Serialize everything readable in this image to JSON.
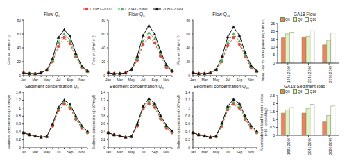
{
  "chart_data": [
    {
      "type": "line",
      "title": "Flow Q₀",
      "ylabel": "Flow (× 10³ m³ s⁻¹)",
      "categories": [
        "Jan",
        null,
        "Mar",
        null,
        "May",
        null,
        "Jul",
        null,
        "Sep",
        null,
        "Nov",
        null
      ],
      "ylim": [
        0,
        80
      ],
      "yticks": [
        0,
        20,
        40,
        60,
        80
      ],
      "series": [
        {
          "name": "1981-2000",
          "color": "#e8413c",
          "marker": "circle",
          "line_style": "dashed",
          "values": [
            4,
            3,
            3,
            4,
            8,
            20,
            42,
            55,
            46,
            27,
            12,
            6
          ]
        },
        {
          "name": "2041-2060",
          "color": "#4caf50",
          "marker": "triangle",
          "line_style": "dashed",
          "values": [
            4,
            3,
            3,
            4,
            8,
            22,
            48,
            60,
            51,
            29,
            13,
            6
          ]
        },
        {
          "name": "2080-2099",
          "color": "#111111",
          "marker": "triangle",
          "line_style": "solid",
          "values": [
            4,
            3,
            3,
            4,
            8,
            25,
            55,
            66,
            57,
            32,
            14,
            7
          ]
        }
      ]
    },
    {
      "type": "line",
      "title": "Flow Q₈",
      "ylabel": "Flow (× 10³ m³ s⁻¹)",
      "categories": [
        "Jan",
        null,
        "Mar",
        null,
        "May",
        null,
        "Jul",
        null,
        "Sep",
        null,
        "Nov",
        null
      ],
      "ylim": [
        0,
        80
      ],
      "yticks": [
        0,
        20,
        40,
        60,
        80
      ],
      "series": [
        {
          "name": "1981-2000",
          "color": "#e8413c",
          "marker": "circle",
          "line_style": "dashed",
          "values": [
            4,
            3,
            3,
            4,
            8,
            22,
            45,
            55,
            47,
            28,
            12,
            6
          ]
        },
        {
          "name": "2041-2060",
          "color": "#4caf50",
          "marker": "triangle",
          "line_style": "dashed",
          "values": [
            4,
            3,
            3,
            4,
            9,
            25,
            50,
            62,
            53,
            31,
            14,
            7
          ]
        },
        {
          "name": "2080-2099",
          "color": "#111111",
          "marker": "triangle",
          "line_style": "solid",
          "values": [
            4,
            3,
            3,
            4,
            9,
            28,
            58,
            72,
            60,
            35,
            16,
            7
          ]
        }
      ]
    },
    {
      "type": "line",
      "title": "Flow Q₁₆",
      "ylabel": "Flow (× 10³ m³ s⁻¹)",
      "categories": [
        "Jan",
        null,
        "Mar",
        null,
        "May",
        null,
        "Jul",
        null,
        "Sep",
        null,
        "Nov",
        null
      ],
      "ylim": [
        0,
        80
      ],
      "yticks": [
        0,
        20,
        40,
        60,
        80
      ],
      "series": [
        {
          "name": "1981-2000",
          "color": "#e8413c",
          "marker": "circle",
          "line_style": "dashed",
          "values": [
            4,
            3,
            3,
            4,
            8,
            20,
            43,
            55,
            45,
            27,
            12,
            6
          ]
        },
        {
          "name": "2041-2060",
          "color": "#4caf50",
          "marker": "triangle",
          "line_style": "dashed",
          "values": [
            4,
            3,
            3,
            4,
            8,
            22,
            48,
            60,
            50,
            29,
            13,
            6
          ]
        },
        {
          "name": "2080-2099",
          "color": "#111111",
          "marker": "triangle",
          "line_style": "solid",
          "values": [
            4,
            3,
            3,
            4,
            9,
            27,
            56,
            70,
            58,
            33,
            15,
            7
          ]
        }
      ]
    },
    {
      "type": "bar",
      "title": "GA18 Flow",
      "ylabel": "Mean Flow for entire period (×10³ m³ s⁻¹)",
      "categories": [
        "1981-2000",
        "2041-2060",
        "2080-2099"
      ],
      "ylim": [
        0,
        25
      ],
      "yticks": [
        0,
        5,
        10,
        15,
        20,
        25
      ],
      "series": [
        {
          "name": "Q0",
          "color": "#f08060",
          "values": [
            16,
            16.5,
            11.5
          ]
        },
        {
          "name": "Q8",
          "color": "#e3efc4",
          "values": [
            18.5,
            17,
            14.5
          ]
        },
        {
          "name": "Q16",
          "color": "#ffffff",
          "values": [
            19.5,
            20.5,
            19
          ]
        }
      ]
    },
    {
      "type": "line",
      "title": "Sediment concentration Q₀",
      "ylabel": "Sediment concentration (×10³ mg/l)",
      "categories": [
        "Jan",
        null,
        "Mar",
        null,
        "May",
        null,
        "Jul",
        null,
        "Sep",
        null,
        "Nov",
        null
      ],
      "ylim": [
        0,
        1.4
      ],
      "yticks": [
        0,
        0.2,
        0.4,
        0.6,
        0.8,
        1,
        1.2,
        1.4
      ],
      "series": [
        {
          "name": "1981-2000",
          "color": "#e8413c",
          "marker": "circle",
          "line_style": "dashed",
          "values": [
            0.38,
            0.33,
            0.3,
            0.27,
            0.28,
            0.55,
            0.95,
            1.1,
            1.0,
            0.72,
            0.5,
            0.38
          ]
        },
        {
          "name": "2041-2060",
          "color": "#4caf50",
          "marker": "triangle",
          "line_style": "dashed",
          "values": [
            0.38,
            0.33,
            0.3,
            0.27,
            0.29,
            0.58,
            1.0,
            1.15,
            1.05,
            0.76,
            0.53,
            0.4
          ]
        },
        {
          "name": "2080-2099",
          "color": "#111111",
          "marker": "triangle",
          "line_style": "solid",
          "values": [
            0.38,
            0.33,
            0.3,
            0.27,
            0.29,
            0.6,
            1.02,
            1.2,
            1.1,
            0.8,
            0.56,
            0.42
          ]
        }
      ]
    },
    {
      "type": "line",
      "title": "Sediment concentration Q₈",
      "ylabel": "Sediment concentration (×10³ mg/l)",
      "categories": [
        "Jan",
        null,
        "Mar",
        null,
        "May",
        null,
        "Jul",
        null,
        "Sep",
        null,
        "Nov",
        null
      ],
      "ylim": [
        0,
        1.4
      ],
      "yticks": [
        0,
        0.2,
        0.4,
        0.6,
        0.8,
        1,
        1.2,
        1.4
      ],
      "series": [
        {
          "name": "1981-2000",
          "color": "#e8413c",
          "marker": "circle",
          "line_style": "dashed",
          "values": [
            0.38,
            0.33,
            0.3,
            0.27,
            0.28,
            0.55,
            0.98,
            1.12,
            1.02,
            0.73,
            0.5,
            0.38
          ]
        },
        {
          "name": "2041-2060",
          "color": "#4caf50",
          "marker": "triangle",
          "line_style": "dashed",
          "values": [
            0.38,
            0.33,
            0.3,
            0.27,
            0.29,
            0.58,
            1.02,
            1.18,
            1.07,
            0.77,
            0.53,
            0.4
          ]
        },
        {
          "name": "2080-2099",
          "color": "#111111",
          "marker": "triangle",
          "line_style": "solid",
          "values": [
            0.38,
            0.33,
            0.3,
            0.27,
            0.29,
            0.6,
            1.05,
            1.24,
            1.12,
            0.82,
            0.56,
            0.42
          ]
        }
      ]
    },
    {
      "type": "line",
      "title": "Sediment concentration Q₁₆",
      "ylabel": "Sediment concentration (×10³ mg/l)",
      "categories": [
        "Jan",
        null,
        "Mar",
        null,
        "May",
        null,
        "Jul",
        null,
        "Sep",
        null,
        "Nov",
        null
      ],
      "ylim": [
        0,
        1.4
      ],
      "yticks": [
        0,
        0.2,
        0.4,
        0.6,
        0.8,
        1,
        1.2,
        1.4
      ],
      "series": [
        {
          "name": "1981-2000",
          "color": "#e8413c",
          "marker": "circle",
          "line_style": "dashed",
          "values": [
            0.38,
            0.33,
            0.3,
            0.27,
            0.28,
            0.55,
            0.96,
            1.1,
            1.0,
            0.72,
            0.5,
            0.38
          ]
        },
        {
          "name": "2041-2060",
          "color": "#4caf50",
          "marker": "triangle",
          "line_style": "dashed",
          "values": [
            0.38,
            0.33,
            0.3,
            0.27,
            0.29,
            0.58,
            1.0,
            1.15,
            1.05,
            0.76,
            0.53,
            0.4
          ]
        },
        {
          "name": "2080-2099",
          "color": "#111111",
          "marker": "triangle",
          "line_style": "solid",
          "values": [
            0.38,
            0.33,
            0.3,
            0.27,
            0.3,
            0.62,
            1.05,
            1.22,
            1.12,
            0.8,
            0.56,
            0.42
          ]
        }
      ]
    },
    {
      "type": "bar",
      "title": "GA18 Sediment load",
      "ylabel": "Mean sediment load for entire period (×10⁴ tonnes/day)",
      "categories": [
        "1981-2000",
        "2041-2060",
        "2080-2099"
      ],
      "ylim": [
        0,
        2.5
      ],
      "yticks": [
        0,
        0.5,
        1,
        1.5,
        2,
        2.5
      ],
      "series": [
        {
          "name": "Q0",
          "color": "#f08060",
          "values": [
            1.4,
            1.4,
            0.85
          ]
        },
        {
          "name": "Q8",
          "color": "#e3efc4",
          "values": [
            1.6,
            1.7,
            1.25
          ]
        },
        {
          "name": "Q16",
          "color": "#ffffff",
          "values": [
            1.75,
            1.95,
            1.85
          ]
        }
      ]
    }
  ]
}
